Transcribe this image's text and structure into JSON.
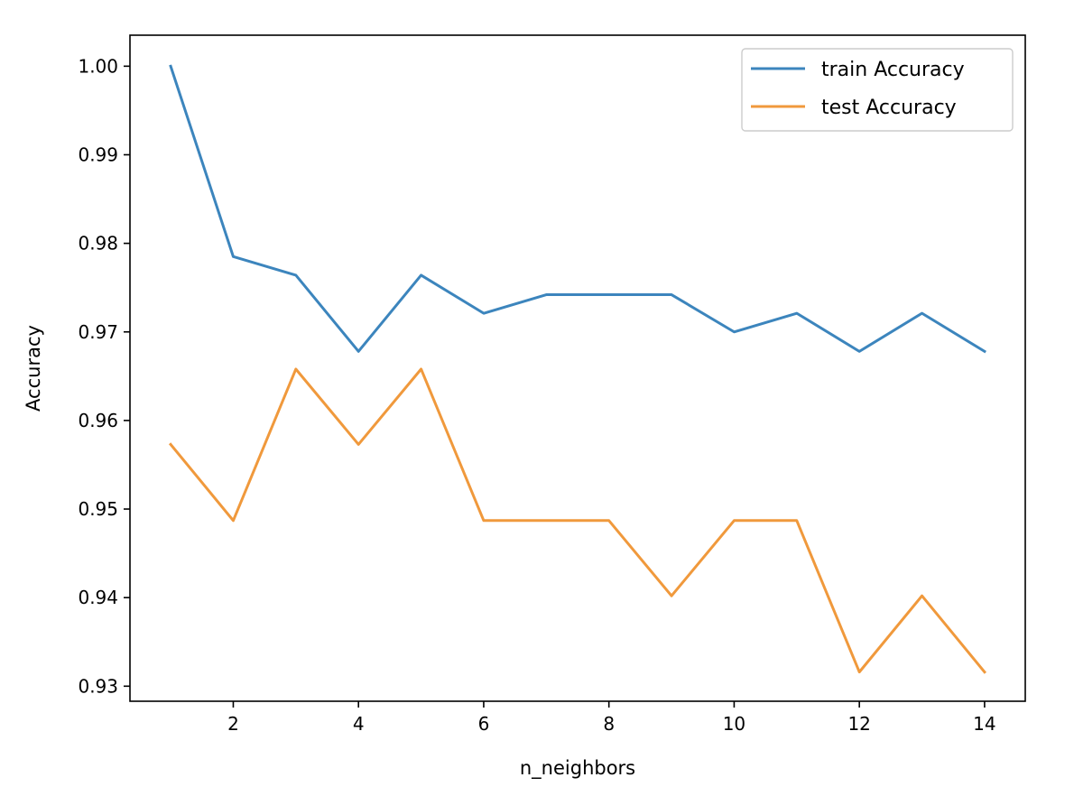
{
  "chart_data": {
    "type": "line",
    "xlabel": "n_neighbors",
    "ylabel": "Accuracy",
    "x": [
      1,
      2,
      3,
      4,
      5,
      6,
      7,
      8,
      9,
      10,
      11,
      12,
      13,
      14
    ],
    "xlim": [
      0.35,
      14.65
    ],
    "ylim": [
      0.9283,
      1.0035
    ],
    "x_ticks": [
      2,
      4,
      6,
      8,
      10,
      12,
      14
    ],
    "y_ticks": [
      0.93,
      0.94,
      0.95,
      0.96,
      0.97,
      0.98,
      0.99,
      1.0
    ],
    "x_tick_labels": [
      "2",
      "4",
      "6",
      "8",
      "10",
      "12",
      "14"
    ],
    "y_tick_labels": [
      "0.93",
      "0.94",
      "0.95",
      "0.96",
      "0.97",
      "0.98",
      "0.99",
      "1.00"
    ],
    "grid": false,
    "legend_position": "top-right",
    "series": [
      {
        "name": "train Accuracy",
        "color": "#3c85bd",
        "values": [
          1.0,
          0.9785,
          0.9764,
          0.9678,
          0.9764,
          0.9721,
          0.9742,
          0.9742,
          0.9742,
          0.97,
          0.9721,
          0.9678,
          0.9721,
          0.9678
        ]
      },
      {
        "name": "test Accuracy",
        "color": "#f0993c",
        "values": [
          0.9573,
          0.9487,
          0.9658,
          0.9573,
          0.9658,
          0.9487,
          0.9487,
          0.9487,
          0.9402,
          0.9487,
          0.9487,
          0.9316,
          0.9402,
          0.9316
        ]
      }
    ]
  }
}
